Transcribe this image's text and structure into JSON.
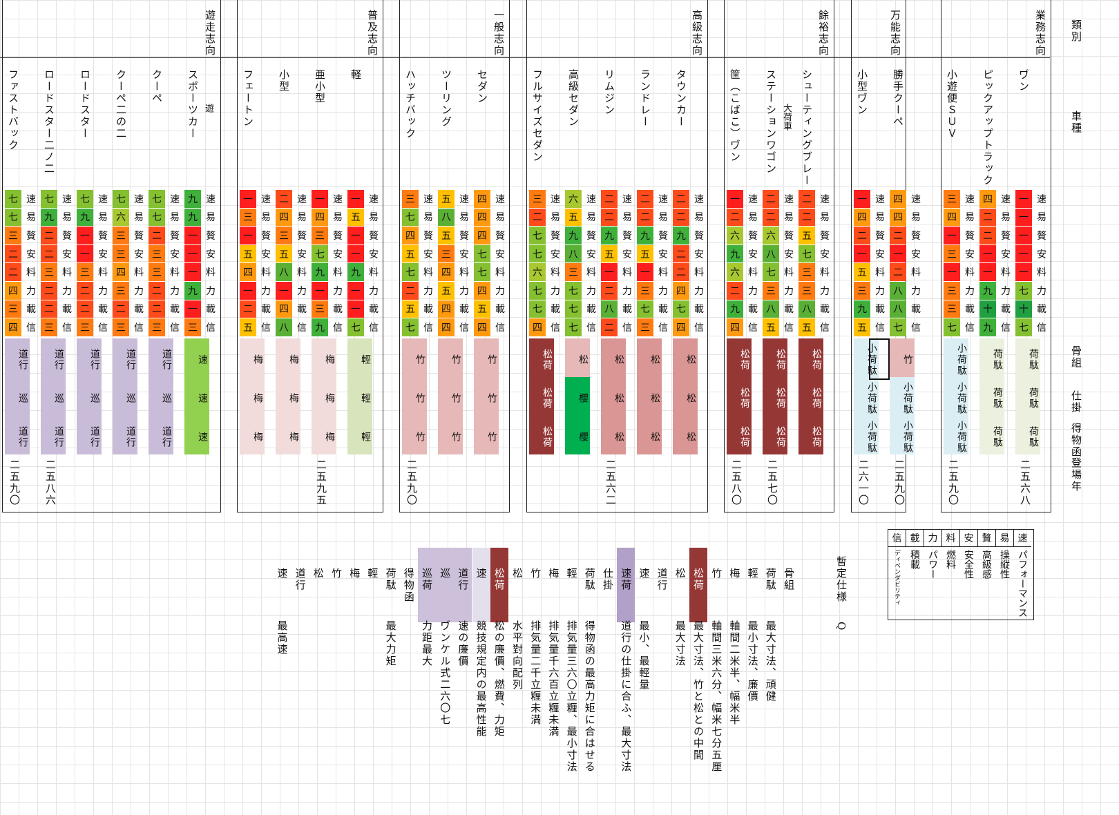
{
  "ratingColors": {
    "一": "#ff1e1e",
    "二": "#ff4a1a",
    "三": "#ff7a10",
    "四": "#ff9a10",
    "五": "#ffc000",
    "六": "#a8c830",
    "七": "#84c030",
    "八": "#5ab035",
    "九": "#3fb03a",
    "十": "#20a040"
  },
  "statLabels": [
    "速",
    "易",
    "贅",
    "安",
    "料",
    "力",
    "載",
    "信"
  ],
  "rowLabels": {
    "category": "類別",
    "model": "車種",
    "frame": "骨組",
    "setup": "仕掛",
    "engine": "得物函",
    "year": "登場年"
  },
  "groups": [
    {
      "category": "遊走志向",
      "vehicles": [
        {
          "name": "ファストバック",
          "stats": [
            "七",
            "七",
            "三",
            "二",
            "二",
            "四",
            "三",
            "四"
          ],
          "parts": [
            {
              "text": "道行",
              "color": "#c9bcd9"
            },
            {
              "text": "巡",
              "color": "#c9bcd9"
            },
            {
              "text": "道行",
              "color": "#c9bcd9"
            }
          ],
          "year": "二五九〇"
        },
        {
          "name": "ロードスター二ノ二",
          "stats": [
            "七",
            "九",
            "二",
            "二",
            "三",
            "二",
            "二",
            "三"
          ],
          "parts": [
            {
              "text": "道行",
              "color": "#c9bcd9"
            },
            {
              "text": "巡",
              "color": "#c9bcd9"
            },
            {
              "text": "道行",
              "color": "#c9bcd9"
            }
          ],
          "year": "二五八六"
        },
        {
          "name": "ロードスター",
          "stats": [
            "七",
            "九",
            "一",
            "一",
            "三",
            "二",
            "二",
            "三"
          ],
          "parts": [
            {
              "text": "道行",
              "color": "#c9bcd9"
            },
            {
              "text": "巡",
              "color": "#c9bcd9"
            },
            {
              "text": "道行",
              "color": "#c9bcd9"
            }
          ],
          "year": ""
        },
        {
          "name": "クーペ二の二",
          "stats": [
            "七",
            "六",
            "三",
            "三",
            "四",
            "三",
            "二",
            "三"
          ],
          "parts": [
            {
              "text": "道行",
              "color": "#c9bcd9"
            },
            {
              "text": "巡",
              "color": "#c9bcd9"
            },
            {
              "text": "道行",
              "color": "#c9bcd9"
            }
          ],
          "year": ""
        },
        {
          "name": "クーペ",
          "stats": [
            "七",
            "七",
            "二",
            "三",
            "三",
            "二",
            "二",
            "三"
          ],
          "parts": [
            {
              "text": "道行",
              "color": "#c9bcd9"
            },
            {
              "text": "巡",
              "color": "#c9bcd9"
            },
            {
              "text": "道行",
              "color": "#c9bcd9"
            }
          ],
          "year": ""
        },
        {
          "name": "スポーツカー",
          "note": "遊",
          "stats": [
            "九",
            "九",
            "一",
            "一",
            "一",
            "九",
            "一",
            "三"
          ],
          "parts": [
            {
              "text": "速",
              "color": "#92d050"
            },
            {
              "text": "速",
              "color": "#92d050"
            },
            {
              "text": "速",
              "color": "#92d050"
            }
          ],
          "year": ""
        }
      ]
    },
    {
      "category": "普及志向",
      "vehicles": [
        {
          "name": "フェートン",
          "stats": [
            "一",
            "三",
            "一",
            "五",
            "四",
            "一",
            "二",
            "五"
          ],
          "parts": [
            {
              "text": "梅",
              "color": "#f2dcdb"
            },
            {
              "text": "梅",
              "color": "#f2dcdb"
            },
            {
              "text": "梅",
              "color": "#f2dcdb"
            }
          ],
          "year": ""
        },
        {
          "name": "小型",
          "stats": [
            "二",
            "四",
            "三",
            "五",
            "八",
            "一",
            "四",
            "八"
          ],
          "parts": [
            {
              "text": "梅",
              "color": "#f2dcdb"
            },
            {
              "text": "梅",
              "color": "#f2dcdb"
            },
            {
              "text": "梅",
              "color": "#f2dcdb"
            }
          ],
          "year": ""
        },
        {
          "name": "亜小型",
          "stats": [
            "一",
            "四",
            "三",
            "七",
            "九",
            "一",
            "三",
            "九"
          ],
          "parts": [
            {
              "text": "梅",
              "color": "#f2dcdb"
            },
            {
              "text": "梅",
              "color": "#f2dcdb"
            },
            {
              "text": "梅",
              "color": "#f2dcdb"
            }
          ],
          "year": "二五九五"
        },
        {
          "name": "軽",
          "stats": [
            "一",
            "五",
            "一",
            "一",
            "九",
            "一",
            "一",
            "七"
          ],
          "parts": [
            {
              "text": "輕",
              "color": "#d8e4bc"
            },
            {
              "text": "輕",
              "color": "#d8e4bc"
            },
            {
              "text": "輕",
              "color": "#d8e4bc"
            }
          ],
          "year": ""
        }
      ]
    },
    {
      "category": "一般志向",
      "vehicles": [
        {
          "name": "ハッチバック",
          "stats": [
            "三",
            "七",
            "四",
            "五",
            "七",
            "二",
            "五",
            "七"
          ],
          "parts": [
            {
              "text": "竹",
              "color": "#e6b8b7"
            },
            {
              "text": "竹",
              "color": "#e6b8b7"
            },
            {
              "text": "竹",
              "color": "#e6b8b7"
            }
          ],
          "year": "二五九〇"
        },
        {
          "name": "ツーリング",
          "stats": [
            "五",
            "八",
            "五",
            "三",
            "四",
            "五",
            "四",
            "四"
          ],
          "parts": [
            {
              "text": "竹",
              "color": "#e6b8b7"
            },
            {
              "text": "竹",
              "color": "#e6b8b7"
            },
            {
              "text": "竹",
              "color": "#e6b8b7"
            }
          ],
          "year": ""
        },
        {
          "name": "セダン",
          "stats": [
            "四",
            "四",
            "四",
            "七",
            "七",
            "四",
            "五",
            "四"
          ],
          "parts": [
            {
              "text": "竹",
              "color": "#e6b8b7"
            },
            {
              "text": "竹",
              "color": "#e6b8b7"
            },
            {
              "text": "竹",
              "color": "#e6b8b7"
            }
          ],
          "year": ""
        }
      ]
    },
    {
      "category": "高級志向",
      "vehicles": [
        {
          "name": "フルサイズセダン",
          "stats": [
            "三",
            "二",
            "七",
            "七",
            "六",
            "七",
            "七",
            "四"
          ],
          "parts": [
            {
              "text": "松荷",
              "color": "#953735",
              "light": true
            },
            {
              "text": "松荷",
              "color": "#953735",
              "light": true
            },
            {
              "text": "松荷",
              "color": "#953735",
              "light": true
            }
          ],
          "year": ""
        },
        {
          "name": "高級セダン",
          "stats": [
            "六",
            "五",
            "九",
            "八",
            "三",
            "七",
            "七",
            "七"
          ],
          "parts": [
            {
              "text": "松",
              "color": "#e6b8b7"
            },
            {
              "text": "櫻",
              "color": "#00b050"
            },
            {
              "text": "櫻",
              "color": "#00b050"
            }
          ],
          "year": ""
        },
        {
          "name": "リムジン",
          "stats": [
            "二",
            "二",
            "九",
            "五",
            "一",
            "二",
            "八",
            "二"
          ],
          "parts": [
            {
              "text": "松",
              "color": "#da9694"
            },
            {
              "text": "松",
              "color": "#da9694"
            },
            {
              "text": "松",
              "color": "#da9694"
            }
          ],
          "year": "二五六二"
        },
        {
          "name": "ランドレー",
          "stats": [
            "二",
            "二",
            "九",
            "五",
            "一",
            "三",
            "七",
            "三"
          ],
          "parts": [
            {
              "text": "松",
              "color": "#da9694"
            },
            {
              "text": "松",
              "color": "#da9694"
            },
            {
              "text": "松",
              "color": "#da9694"
            }
          ],
          "year": ""
        },
        {
          "name": "タウンカー",
          "stats": [
            "二",
            "二",
            "九",
            "二",
            "二",
            "四",
            "七",
            "四"
          ],
          "parts": [
            {
              "text": "松",
              "color": "#da9694"
            },
            {
              "text": "松",
              "color": "#da9694"
            },
            {
              "text": "松",
              "color": "#da9694"
            }
          ],
          "year": ""
        }
      ]
    },
    {
      "category": "餘裕志向",
      "vehicles": [
        {
          "name": "筐（こばこ）ヷン",
          "stats": [
            "一",
            "二",
            "六",
            "九",
            "六",
            "二",
            "九",
            "四"
          ],
          "parts": [
            {
              "text": "松荷",
              "color": "#953735",
              "light": true
            },
            {
              "text": "松荷",
              "color": "#953735",
              "light": true
            },
            {
              "text": "松荷",
              "color": "#953735",
              "light": true
            }
          ],
          "year": "二五八〇"
        },
        {
          "name": "ステーションワゴン",
          "note": "大荷車",
          "stats": [
            "二",
            "二",
            "六",
            "八",
            "七",
            "三",
            "八",
            "五"
          ],
          "parts": [
            {
              "text": "松荷",
              "color": "#953735",
              "light": true
            },
            {
              "text": "松荷",
              "color": "#953735",
              "light": true
            },
            {
              "text": "松荷",
              "color": "#953735",
              "light": true
            }
          ],
          "year": "二五七〇"
        },
        {
          "name": "シューティングブレー",
          "stats": [
            "二",
            "二",
            "五",
            "七",
            "三",
            "三",
            "八",
            "五"
          ],
          "parts": [
            {
              "text": "松荷",
              "color": "#953735",
              "light": true
            },
            {
              "text": "松荷",
              "color": "#953735",
              "light": true
            },
            {
              "text": "松荷",
              "color": "#953735",
              "light": true
            }
          ],
          "year": ""
        }
      ]
    },
    {
      "category": "万能志向",
      "vehicles": [
        {
          "name": "小型ヷン",
          "stats": [
            "一",
            "四",
            "二",
            "一",
            "五",
            "三",
            "九",
            "五"
          ],
          "parts": [
            {
              "text": "小荷駄",
              "color": "#daeef3"
            },
            {
              "text": "小荷駄",
              "color": "#daeef3"
            },
            {
              "text": "小荷駄",
              "color": "#daeef3"
            }
          ],
          "year": "二六一〇"
        },
        {
          "name": "勝手クーペ",
          "stats": [
            "四",
            "四",
            "二",
            "一",
            "二",
            "八",
            "八",
            "七"
          ],
          "parts": [
            {
              "text": "竹",
              "color": "#e6b8b7"
            },
            {
              "text": "小荷駄",
              "color": "#daeef3"
            },
            {
              "text": "小荷駄",
              "color": "#daeef3"
            }
          ],
          "year": "二五九〇"
        }
      ]
    },
    {
      "category": "業務志向",
      "vehicles": [
        {
          "name": "小遊便ＳＵＶ",
          "stats": [
            "三",
            "四",
            "一",
            "三",
            "一",
            "三",
            "三",
            "七"
          ],
          "parts": [
            {
              "text": "小荷駄",
              "color": "#daeef3"
            },
            {
              "text": "小荷駄",
              "color": "#daeef3"
            },
            {
              "text": "小荷駄",
              "color": "#daeef3"
            }
          ],
          "year": "二五九〇"
        },
        {
          "name": "ピックアップトラック",
          "stats": [
            "四",
            "二",
            "二",
            "一",
            "一",
            "九",
            "十",
            "九"
          ],
          "parts": [
            {
              "text": "荷駄",
              "color": "#ebf1de"
            },
            {
              "text": "荷駄",
              "color": "#ebf1de"
            },
            {
              "text": "荷駄",
              "color": "#ebf1de"
            }
          ],
          "year": ""
        },
        {
          "name": "ヷン",
          "stats": [
            "一",
            "一",
            "一",
            "一",
            "一",
            "七",
            "十",
            "七"
          ],
          "parts": [
            {
              "text": "荷駄",
              "color": "#ebf1de"
            },
            {
              "text": "荷駄",
              "color": "#ebf1de"
            },
            {
              "text": "荷駄",
              "color": "#ebf1de"
            }
          ],
          "year": "二五六八"
        }
      ]
    }
  ],
  "legend": {
    "title": "暫定仕様",
    "title2": "Q",
    "items": [
      {
        "k": "速",
        "v": "パフォーマンス"
      },
      {
        "k": "易",
        "v": "操縦性"
      },
      {
        "k": "贅",
        "v": "高級感"
      },
      {
        "k": "安",
        "v": "安全性"
      },
      {
        "k": "料",
        "v": "燃料"
      },
      {
        "k": "力",
        "v": "パワー"
      },
      {
        "k": "載",
        "v": "積載"
      },
      {
        "k": "信",
        "v": "ディペンダビリティ"
      }
    ]
  },
  "notes": [
    {
      "k": "骨組",
      "v": ""
    },
    {
      "k": "荷駄",
      "v": "最大寸法、頑健"
    },
    {
      "k": "輕",
      "v": "最小寸法、廉價"
    },
    {
      "k": "梅",
      "v": "軸間二米半、幅米半"
    },
    {
      "k": "竹",
      "v": "軸間三米六分、幅米七分五厘"
    },
    {
      "k": "松荷",
      "v": "最大寸法、竹と松との中間",
      "bg": "#953735",
      "light": true
    },
    {
      "k": "松",
      "v": "最大寸法"
    },
    {
      "k": "道行",
      "v": ""
    },
    {
      "k": "速",
      "v": "最小、最輕量"
    },
    {
      "k": "速荷",
      "v": "道行の仕掛に合ふ、最大寸法",
      "bg": "#b1a0c7"
    },
    {
      "k": "仕掛",
      "v": ""
    },
    {
      "k": "荷駄",
      "v": "得物函の最高力矩に合はせる"
    },
    {
      "k": "輕",
      "v": "排気量三六〇立糎、最小寸法"
    },
    {
      "k": "梅",
      "v": "排気量千六百立糎未満"
    },
    {
      "k": "竹",
      "v": "排気量二千立糎未満"
    },
    {
      "k": "松",
      "v": "水平對向配列"
    },
    {
      "k": "松荷",
      "v": "松の廉價、燃費、力矩",
      "bg": "#953735",
      "light": true
    },
    {
      "k": "速",
      "v": "競技規定内の最高性能",
      "bg": "#e4dfec"
    },
    {
      "k": "道行",
      "v": "速の廉價",
      "bg": "#ccc0da"
    },
    {
      "k": "巡",
      "v": "ヷンケル式二六〇七",
      "bg": "#ccc0da"
    },
    {
      "k": "巡荷",
      "v": "力距最大",
      "bg": "#ccc0da"
    },
    {
      "k": "得物函",
      "v": ""
    },
    {
      "k": "荷駄",
      "v": "最大力矩"
    },
    {
      "k": "輕",
      "v": ""
    },
    {
      "k": "梅",
      "v": ""
    },
    {
      "k": "竹",
      "v": ""
    },
    {
      "k": "松",
      "v": ""
    },
    {
      "k": "道行",
      "v": ""
    },
    {
      "k": "速",
      "v": "最高速"
    }
  ]
}
